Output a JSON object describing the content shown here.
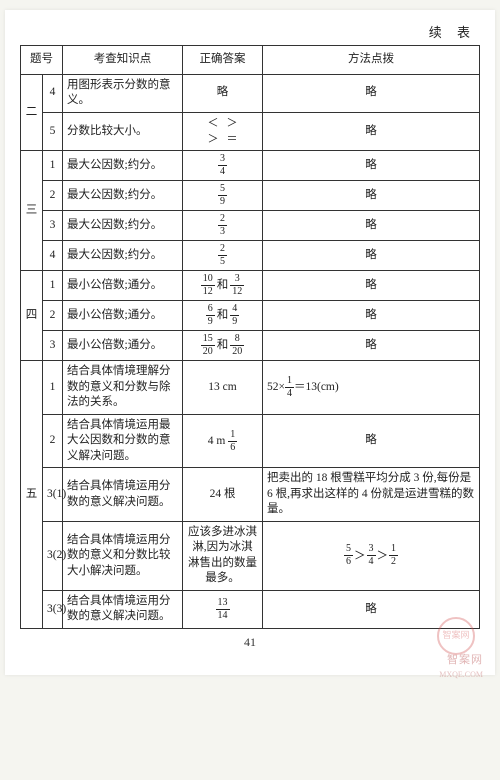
{
  "continuation_label": "续 表",
  "page_number": "41",
  "watermark": "智案网",
  "watermark_sub": "MXQE.COM",
  "stamp_text": "智案网",
  "headers": {
    "num": "题号",
    "topic": "考查知识点",
    "answer": "正确答案",
    "method": "方法点拨"
  },
  "groups": [
    {
      "section": "二",
      "rows": [
        {
          "sub": "4",
          "topic": "用图形表示分数的意义。",
          "answer_text": "略",
          "method_text": "略"
        },
        {
          "sub": "5",
          "topic": "分数比较大小。",
          "answer_symbols": [
            "＜",
            "＞",
            "＞",
            "＝"
          ],
          "method_text": "略"
        }
      ]
    },
    {
      "section": "三",
      "rows": [
        {
          "sub": "1",
          "topic": "最大公因数;约分。",
          "answer_frac": {
            "n": "3",
            "d": "4"
          },
          "method_text": "略"
        },
        {
          "sub": "2",
          "topic": "最大公因数;约分。",
          "answer_frac": {
            "n": "5",
            "d": "9"
          },
          "method_text": "略"
        },
        {
          "sub": "3",
          "topic": "最大公因数;约分。",
          "answer_frac": {
            "n": "2",
            "d": "3"
          },
          "method_text": "略"
        },
        {
          "sub": "4",
          "topic": "最大公因数;约分。",
          "answer_frac": {
            "n": "2",
            "d": "5"
          },
          "method_text": "略"
        }
      ]
    },
    {
      "section": "四",
      "rows": [
        {
          "sub": "1",
          "topic": "最小公倍数;通分。",
          "answer_fracs": [
            {
              "n": "10",
              "d": "12"
            },
            {
              "n": "3",
              "d": "12"
            }
          ],
          "sep": "和",
          "method_text": "略"
        },
        {
          "sub": "2",
          "topic": "最小公倍数;通分。",
          "answer_fracs": [
            {
              "n": "6",
              "d": "9"
            },
            {
              "n": "4",
              "d": "9"
            }
          ],
          "sep": "和",
          "method_text": "略"
        },
        {
          "sub": "3",
          "topic": "最小公倍数;通分。",
          "answer_fracs": [
            {
              "n": "15",
              "d": "20"
            },
            {
              "n": "8",
              "d": "20"
            }
          ],
          "sep": "和",
          "method_text": "略"
        }
      ]
    },
    {
      "section": "五",
      "rows": [
        {
          "sub": "1",
          "topic": "结合具体情境理解分数的意义和分数与除法的关系。",
          "answer_text": "13 cm",
          "method_expr": {
            "pre": "52×",
            "frac": {
              "n": "1",
              "d": "4"
            },
            "post": "＝13(cm)"
          }
        },
        {
          "sub": "2",
          "topic": "结合具体情境运用最大公因数和分数的意义解决问题。",
          "answer_mixed": {
            "pre": "4 m ",
            "frac": {
              "n": "1",
              "d": "6"
            }
          },
          "method_text": "略"
        },
        {
          "sub": "3(1)",
          "topic": "结合具体情境运用分数的意义解决问题。",
          "answer_text": "24 根",
          "method_text": "把卖出的 18 根雪糕平均分成 3 份,每份是 6 根,再求出这样的 4 份就是运进雪糕的数量。"
        },
        {
          "sub": "3(2)",
          "topic": "结合具体情境运用分数的意义和分数比较大小解决问题。",
          "answer_text": "应该多进冰淇淋,因为冰淇淋售出的数量最多。",
          "method_chain": [
            {
              "n": "5",
              "d": "6"
            },
            "＞",
            {
              "n": "3",
              "d": "4"
            },
            "＞",
            {
              "n": "1",
              "d": "2"
            }
          ]
        },
        {
          "sub": "3(3)",
          "topic": "结合具体情境运用分数的意义解决问题。",
          "answer_frac": {
            "n": "13",
            "d": "14"
          },
          "method_text": "略"
        }
      ]
    }
  ]
}
